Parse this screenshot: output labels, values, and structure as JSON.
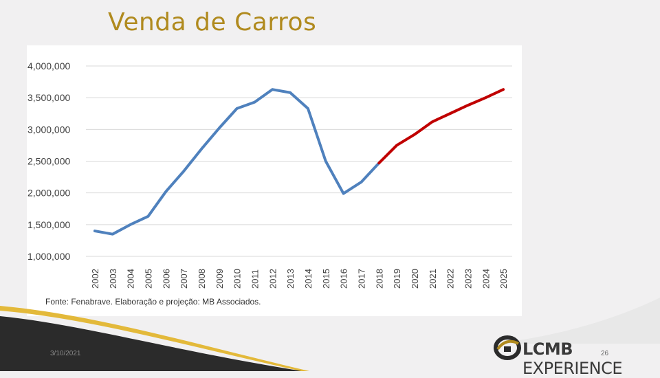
{
  "slide": {
    "title": "Venda de Carros",
    "footer_date": "3/10/2021",
    "page_number": "26"
  },
  "brand": {
    "name_part1": "LCMB",
    "name_part2": "EXPERIENCE",
    "colors": {
      "gold": "#b08a1e",
      "dark": "#2b2b2b"
    }
  },
  "chart_data": {
    "type": "line",
    "title": "",
    "xlabel": "",
    "ylabel": "",
    "source_note": "Fonte: Fenabrave. Elaboração e projeção: MB Associados.",
    "categories": [
      "2002",
      "2003",
      "2004",
      "2005",
      "2006",
      "2007",
      "2008",
      "2009",
      "2010",
      "2011",
      "2012",
      "2013",
      "2014",
      "2015",
      "2016",
      "2017",
      "2018",
      "2019",
      "2020",
      "2021",
      "2022",
      "2023",
      "2024",
      "2025"
    ],
    "ylim": [
      1000000,
      4000000
    ],
    "y_ticks": [
      1000000,
      1500000,
      2000000,
      2500000,
      3000000,
      3500000,
      4000000
    ],
    "y_tick_labels": [
      "1,000,000",
      "1,500,000",
      "2,000,000",
      "2,500,000",
      "3,000,000",
      "3,500,000",
      "4,000,000"
    ],
    "grid": true,
    "legend": "none",
    "series": [
      {
        "color": "#4f81bd",
        "segment": "historical",
        "values": [
          1400000,
          1350000,
          1500000,
          1630000,
          2020000,
          2340000,
          2690000,
          3020000,
          3330000,
          3430000,
          3630000,
          3580000,
          3330000,
          2500000,
          1990000,
          2170000,
          2470000,
          null,
          null,
          null,
          null,
          null,
          null,
          null
        ]
      },
      {
        "color": "#c00000",
        "segment": "projection",
        "values": [
          null,
          null,
          null,
          null,
          null,
          null,
          null,
          null,
          null,
          null,
          null,
          null,
          null,
          null,
          null,
          null,
          2470000,
          2750000,
          2920000,
          3120000,
          3250000,
          3380000,
          3500000,
          3630000
        ]
      }
    ]
  }
}
